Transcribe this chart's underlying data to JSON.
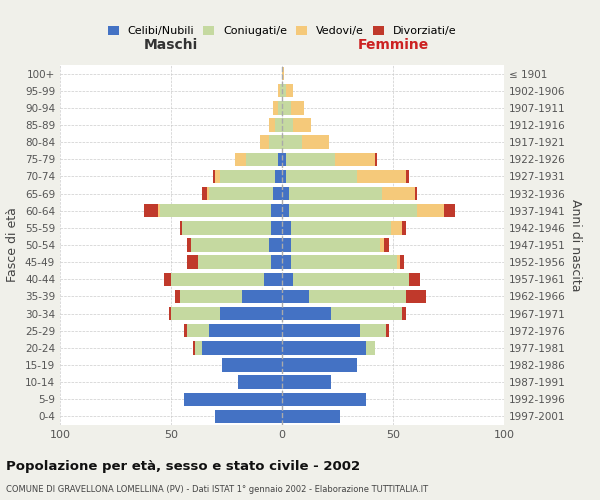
{
  "age_groups_bottom_to_top": [
    "0-4",
    "5-9",
    "10-14",
    "15-19",
    "20-24",
    "25-29",
    "30-34",
    "35-39",
    "40-44",
    "45-49",
    "50-54",
    "55-59",
    "60-64",
    "65-69",
    "70-74",
    "75-79",
    "80-84",
    "85-89",
    "90-94",
    "95-99",
    "100+"
  ],
  "birth_years_bottom_to_top": [
    "1997-2001",
    "1992-1996",
    "1987-1991",
    "1982-1986",
    "1977-1981",
    "1972-1976",
    "1967-1971",
    "1962-1966",
    "1957-1961",
    "1952-1956",
    "1947-1951",
    "1942-1946",
    "1937-1941",
    "1932-1936",
    "1927-1931",
    "1922-1926",
    "1917-1921",
    "1912-1916",
    "1907-1911",
    "1902-1906",
    "≤ 1901"
  ],
  "colors": {
    "celibi": "#4472C4",
    "coniugati": "#c5d9a0",
    "vedovi": "#f5c97a",
    "divorziati": "#c0392b"
  },
  "maschi": {
    "celibi": [
      30,
      44,
      20,
      27,
      36,
      33,
      28,
      18,
      8,
      5,
      6,
      5,
      5,
      4,
      3,
      2,
      0,
      0,
      0,
      0,
      0
    ],
    "coniugati": [
      0,
      0,
      0,
      0,
      3,
      10,
      22,
      28,
      42,
      33,
      35,
      40,
      50,
      29,
      25,
      14,
      6,
      3,
      2,
      1,
      0
    ],
    "vedovi": [
      0,
      0,
      0,
      0,
      0,
      0,
      0,
      0,
      0,
      0,
      0,
      0,
      1,
      1,
      2,
      5,
      4,
      3,
      2,
      1,
      0
    ],
    "divorziati": [
      0,
      0,
      0,
      0,
      1,
      1,
      1,
      2,
      3,
      5,
      2,
      1,
      6,
      2,
      1,
      0,
      0,
      0,
      0,
      0,
      0
    ]
  },
  "femmine": {
    "celibi": [
      26,
      38,
      22,
      34,
      38,
      35,
      22,
      12,
      5,
      4,
      4,
      4,
      3,
      3,
      2,
      2,
      0,
      0,
      0,
      0,
      0
    ],
    "coniugati": [
      0,
      0,
      0,
      0,
      4,
      12,
      32,
      44,
      52,
      48,
      40,
      45,
      58,
      42,
      32,
      22,
      9,
      5,
      4,
      2,
      0
    ],
    "vedovi": [
      0,
      0,
      0,
      0,
      0,
      0,
      0,
      0,
      0,
      1,
      2,
      5,
      12,
      15,
      22,
      18,
      12,
      8,
      6,
      3,
      1
    ],
    "divorziati": [
      0,
      0,
      0,
      0,
      0,
      1,
      2,
      9,
      5,
      2,
      2,
      2,
      5,
      1,
      1,
      1,
      0,
      0,
      0,
      0,
      0
    ]
  },
  "title": "Popolazione per età, sesso e stato civile - 2002",
  "subtitle": "COMUNE DI GRAVELLONA LOMELLINA (PV) - Dati ISTAT 1° gennaio 2002 - Elaborazione TUTTITALIA.IT",
  "xlabel_left": "Maschi",
  "xlabel_right": "Femmine",
  "ylabel_left": "Fasce di età",
  "ylabel_right": "Anni di nascita",
  "xlim": 100,
  "bg_color": "#f0f0ea",
  "plot_bg": "#ffffff",
  "grid_color": "#cccccc",
  "legend_labels": [
    "Celibi/Nubili",
    "Coniugati/e",
    "Vedovi/e",
    "Divorziati/e"
  ],
  "maschi_header_color": "#333333",
  "femmine_header_color": "#cc2222"
}
